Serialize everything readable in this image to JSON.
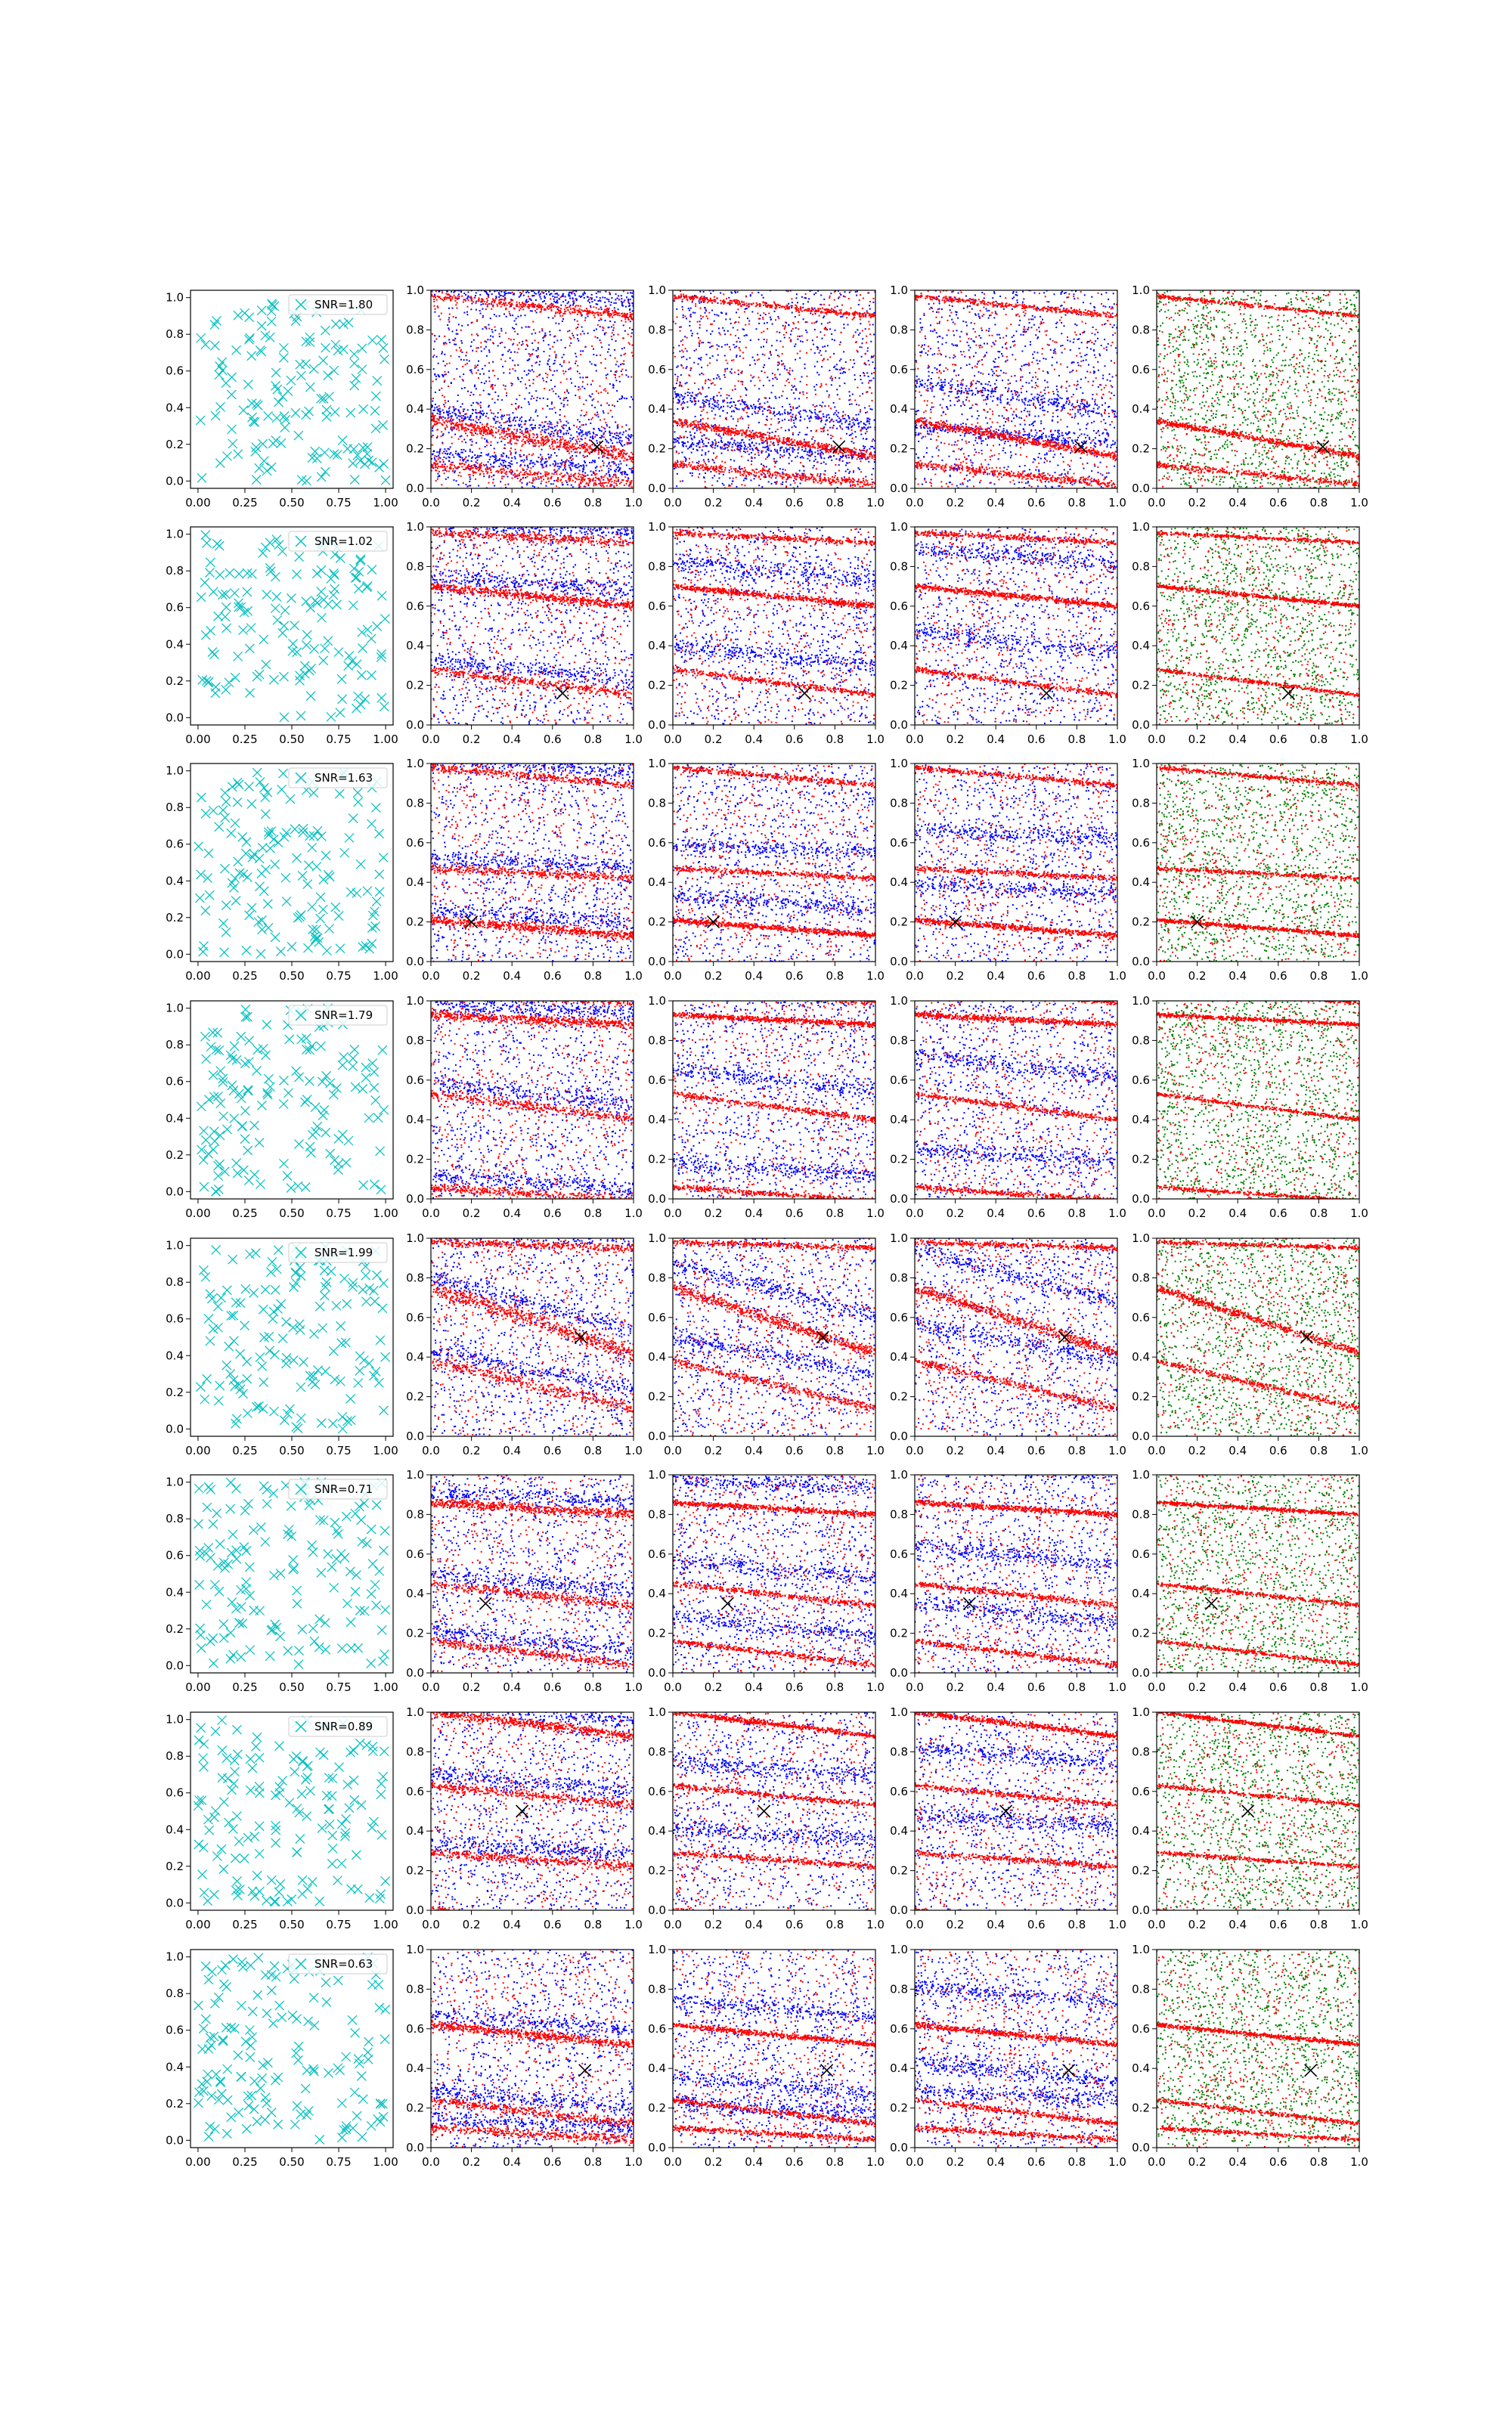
{
  "figure": {
    "rows": 8,
    "columns": 5
  },
  "colors": {
    "positions_marker": "#00BFBF",
    "series_red": "#ff0000",
    "series_blue": "#0000ff",
    "series_green": "#008000",
    "true_source_marker": "#000000"
  },
  "chart_data": {
    "type": "scatter",
    "axes": {
      "col0": {
        "xlim": [
          -0.04,
          1.04
        ],
        "ylim": [
          -0.04,
          1.04
        ],
        "xticks": [
          "0.00",
          "0.25",
          "0.50",
          "0.75",
          "1.00"
        ],
        "yticks": [
          "0.0",
          "0.2",
          "0.4",
          "0.6",
          "0.8",
          "1.0"
        ]
      },
      "cols1to4": {
        "xlim": [
          0,
          1
        ],
        "ylim": [
          0,
          1
        ],
        "xticks": [
          "0.0",
          "0.2",
          "0.4",
          "0.6",
          "0.8",
          "1.0"
        ],
        "yticks": [
          "0.0",
          "0.2",
          "0.4",
          "0.6",
          "0.8",
          "1.0"
        ]
      }
    },
    "grid": false,
    "legend_placement": "top-right",
    "snr_labels": [
      "SNR=1.80",
      "SNR=1.02",
      "SNR=1.63",
      "SNR=1.79",
      "SNR=1.99",
      "SNR=0.71",
      "SNR=0.89",
      "SNR=0.63"
    ],
    "true_source_x": [
      [
        0.82,
        0.21
      ],
      [
        0.65,
        0.16
      ],
      [
        0.2,
        0.2
      ],
      null,
      [
        0.74,
        0.5
      ],
      [
        0.27,
        0.35
      ],
      [
        0.45,
        0.5
      ],
      [
        0.76,
        0.39
      ]
    ],
    "panel_series": [
      [
        "sensor positions (x)"
      ],
      [
        "red",
        "blue"
      ],
      [
        "red",
        "blue"
      ],
      [
        "red",
        "blue"
      ],
      [
        "green",
        "red"
      ]
    ],
    "red_bands": [
      [
        {
          "y0": 0.34,
          "slope": -0.18,
          "w": 0.03
        },
        {
          "y0": 0.12,
          "slope": -0.1,
          "w": 0.03
        },
        {
          "y0": 0.97,
          "slope": -0.1,
          "w": 0.02
        }
      ],
      [
        {
          "y0": 0.7,
          "slope": -0.1,
          "w": 0.02
        },
        {
          "y0": 0.97,
          "slope": -0.05,
          "w": 0.02
        },
        {
          "y0": 0.28,
          "slope": -0.13,
          "w": 0.02
        }
      ],
      [
        {
          "y0": 0.21,
          "slope": -0.08,
          "w": 0.02
        },
        {
          "y0": 0.47,
          "slope": -0.05,
          "w": 0.02
        },
        {
          "y0": 0.98,
          "slope": -0.09,
          "w": 0.02
        }
      ],
      [
        {
          "y0": 0.93,
          "slope": -0.05,
          "w": 0.02
        },
        {
          "y0": 0.53,
          "slope": -0.13,
          "w": 0.02
        },
        {
          "y0": 0.06,
          "slope": -0.07,
          "w": 0.02
        }
      ],
      [
        {
          "y0": 0.75,
          "slope": -0.33,
          "w": 0.04
        },
        {
          "y0": 0.38,
          "slope": -0.24,
          "w": 0.03
        },
        {
          "y0": 0.98,
          "slope": -0.03,
          "w": 0.02
        }
      ],
      [
        {
          "y0": 0.86,
          "slope": -0.06,
          "w": 0.02
        },
        {
          "y0": 0.45,
          "slope": -0.11,
          "w": 0.02
        },
        {
          "y0": 0.16,
          "slope": -0.12,
          "w": 0.02
        }
      ],
      [
        {
          "y0": 1.0,
          "slope": -0.12,
          "w": 0.02
        },
        {
          "y0": 0.63,
          "slope": -0.1,
          "w": 0.02
        },
        {
          "y0": 0.29,
          "slope": -0.07,
          "w": 0.02
        }
      ],
      [
        {
          "y0": 0.62,
          "slope": -0.1,
          "w": 0.02
        },
        {
          "y0": 0.24,
          "slope": -0.12,
          "w": 0.02
        },
        {
          "y0": 0.1,
          "slope": -0.06,
          "w": 0.02
        }
      ]
    ]
  }
}
